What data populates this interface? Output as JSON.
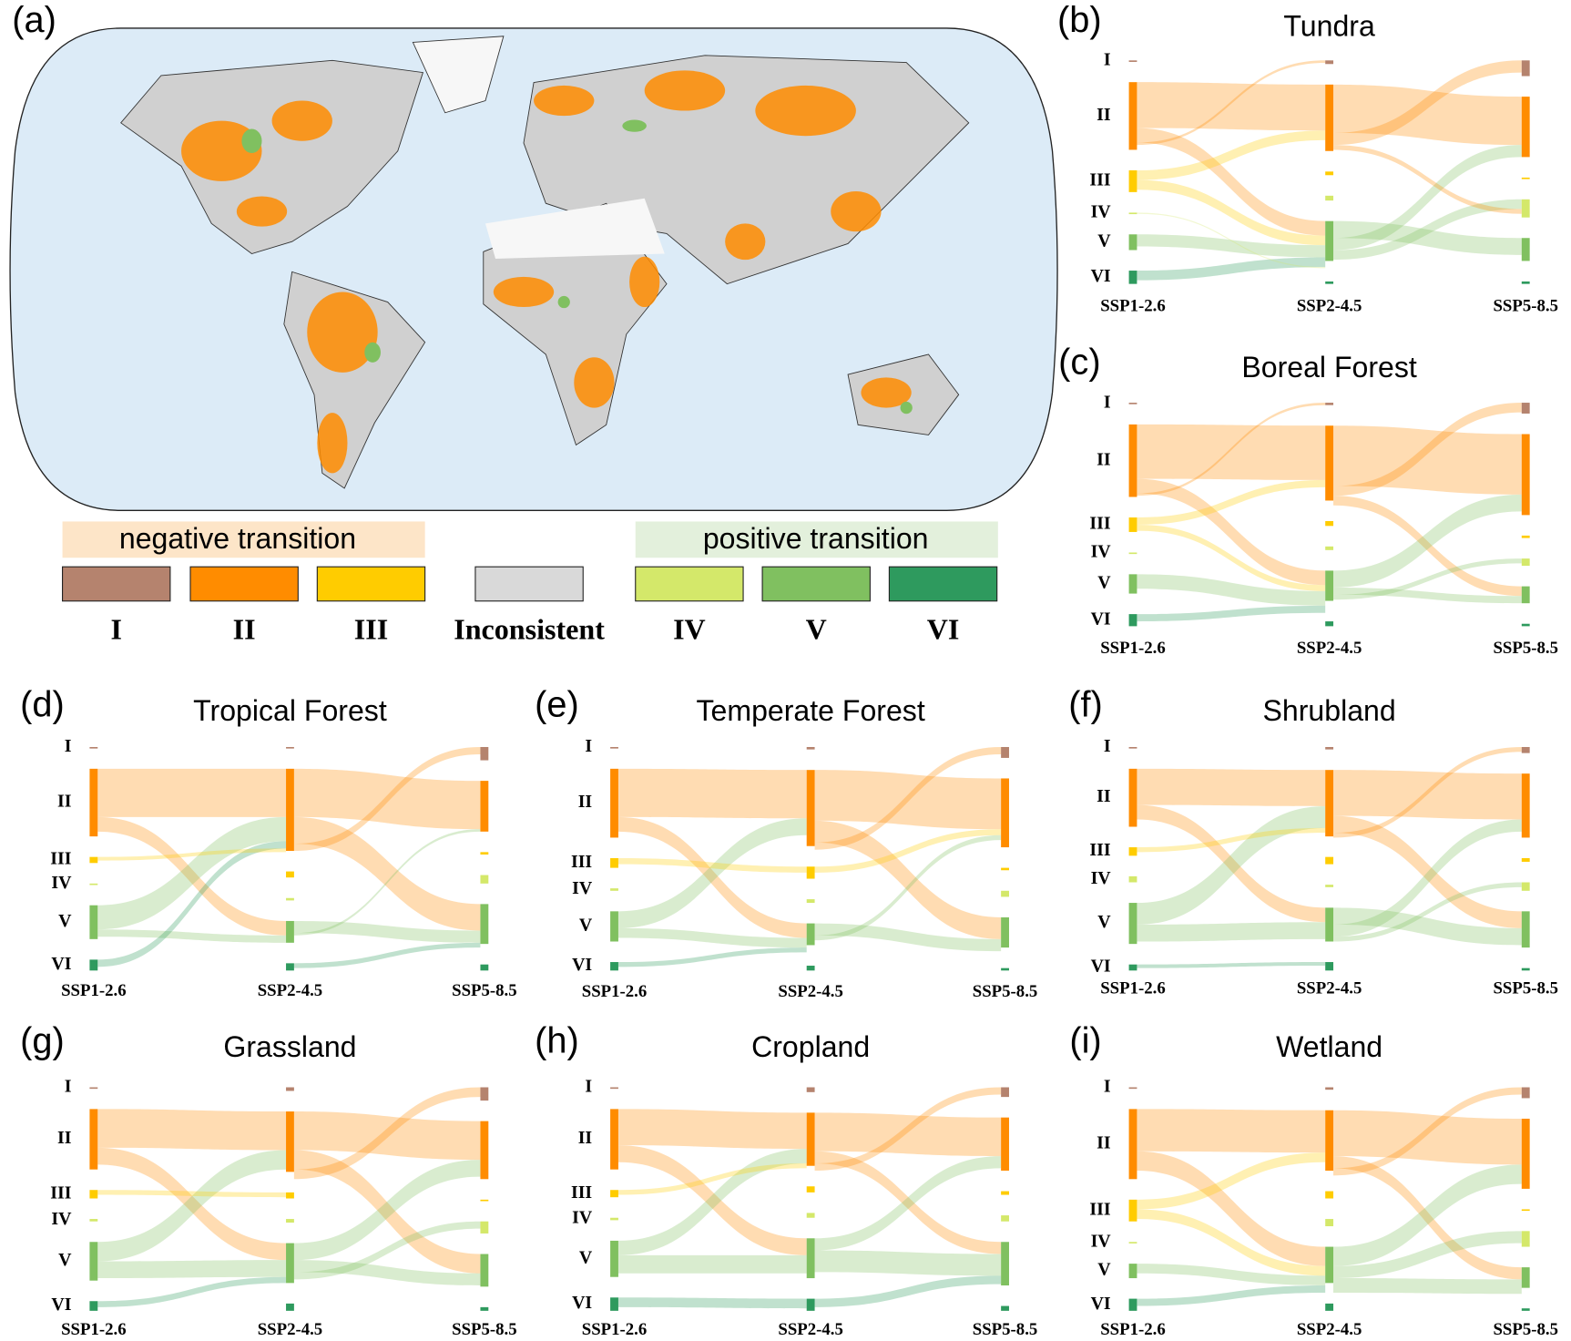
{
  "chart_data": [
    {
      "type": "map",
      "label": "(a)",
      "negative_label": "negative transition",
      "positive_label": "positive transition",
      "classes": [
        {
          "name": "I",
          "color": "#b5836e"
        },
        {
          "name": "II",
          "color": "#ff8c00"
        },
        {
          "name": "III",
          "color": "#ffcc00"
        },
        {
          "name": "Inconsistent",
          "color": "#d9d9d9"
        },
        {
          "name": "IV",
          "color": "#d4e86a"
        },
        {
          "name": "V",
          "color": "#80c060"
        },
        {
          "name": "VI",
          "color": "#2e9a5e"
        }
      ]
    },
    {
      "type": "sankey",
      "label": "(b)",
      "title": "Tundra",
      "levels": [
        "I",
        "II",
        "III",
        "IV",
        "V",
        "VI"
      ],
      "scenarios": [
        "SSP1-2.6",
        "SSP2-4.5",
        "SSP5-8.5"
      ],
      "nodes": [
        [
          1,
          56,
          18,
          1,
          13,
          11
        ],
        [
          3,
          55,
          3,
          4,
          33,
          2
        ],
        [
          13,
          50,
          1,
          15,
          19,
          2
        ]
      ],
      "links": [
        [
          [
            1,
            1,
            38
          ],
          [
            1,
            4,
            12
          ],
          [
            2,
            1,
            8
          ],
          [
            2,
            4,
            8
          ],
          [
            4,
            4,
            10
          ],
          [
            5,
            4,
            8
          ],
          [
            1,
            0,
            2
          ],
          [
            3,
            4,
            1
          ]
        ],
        [
          [
            1,
            1,
            40
          ],
          [
            1,
            0,
            10
          ],
          [
            4,
            4,
            14
          ],
          [
            4,
            1,
            10
          ],
          [
            4,
            3,
            8
          ],
          [
            1,
            3,
            4
          ]
        ]
      ]
    },
    {
      "type": "sankey",
      "label": "(c)",
      "title": "Boreal Forest",
      "levels": [
        "I",
        "II",
        "III",
        "IV",
        "V",
        "VI"
      ],
      "scenarios": [
        "SSP1-2.6",
        "SSP2-4.5",
        "SSP5-8.5"
      ],
      "nodes": [
        [
          1,
          60,
          12,
          1,
          16,
          10
        ],
        [
          2,
          62,
          4,
          3,
          25,
          4
        ],
        [
          9,
          67,
          2,
          6,
          14,
          2
        ]
      ],
      "links": [
        [
          [
            1,
            1,
            45
          ],
          [
            1,
            4,
            12
          ],
          [
            2,
            1,
            6
          ],
          [
            2,
            4,
            5
          ],
          [
            4,
            4,
            12
          ],
          [
            5,
            4,
            6
          ],
          [
            1,
            0,
            2
          ]
        ],
        [
          [
            1,
            1,
            50
          ],
          [
            1,
            0,
            8
          ],
          [
            1,
            4,
            8
          ],
          [
            4,
            1,
            14
          ],
          [
            4,
            4,
            6
          ],
          [
            4,
            3,
            4
          ]
        ]
      ]
    },
    {
      "type": "sankey",
      "label": "(d)",
      "title": "Tropical Forest",
      "levels": [
        "I",
        "II",
        "III",
        "IV",
        "V",
        "VI"
      ],
      "scenarios": [
        "SSP1-2.6",
        "SSP2-4.5",
        "SSP5-8.5"
      ],
      "nodes": [
        [
          1,
          56,
          5,
          1,
          28,
          9
        ],
        [
          1,
          68,
          5,
          2,
          18,
          6
        ],
        [
          11,
          42,
          2,
          7,
          33,
          5
        ]
      ],
      "links": [
        [
          [
            1,
            1,
            40
          ],
          [
            1,
            4,
            12
          ],
          [
            4,
            1,
            20
          ],
          [
            4,
            4,
            6
          ],
          [
            5,
            1,
            6
          ],
          [
            2,
            1,
            3
          ]
        ],
        [
          [
            1,
            1,
            40
          ],
          [
            1,
            4,
            22
          ],
          [
            1,
            0,
            6
          ],
          [
            4,
            4,
            10
          ],
          [
            4,
            1,
            2
          ],
          [
            5,
            4,
            4
          ]
        ]
      ]
    },
    {
      "type": "sankey",
      "label": "(e)",
      "title": "Temperate Forest",
      "levels": [
        "I",
        "II",
        "III",
        "IV",
        "V",
        "VI"
      ],
      "scenarios": [
        "SSP1-2.6",
        "SSP2-4.5",
        "SSP5-8.5"
      ],
      "nodes": [
        [
          1,
          57,
          8,
          2,
          25,
          7
        ],
        [
          2,
          63,
          10,
          3,
          18,
          4
        ],
        [
          9,
          57,
          2,
          5,
          25,
          2
        ]
      ],
      "links": [
        [
          [
            1,
            1,
            40
          ],
          [
            1,
            4,
            12
          ],
          [
            4,
            1,
            14
          ],
          [
            4,
            4,
            8
          ],
          [
            2,
            2,
            5
          ],
          [
            5,
            4,
            4
          ]
        ],
        [
          [
            1,
            1,
            42
          ],
          [
            1,
            4,
            18
          ],
          [
            1,
            0,
            6
          ],
          [
            4,
            4,
            10
          ],
          [
            2,
            1,
            5
          ],
          [
            4,
            1,
            4
          ]
        ]
      ]
    },
    {
      "type": "sankey",
      "label": "(f)",
      "title": "Shrubland",
      "levels": [
        "I",
        "II",
        "III",
        "IV",
        "V",
        "VI"
      ],
      "scenarios": [
        "SSP1-2.6",
        "SSP2-4.5",
        "SSP5-8.5"
      ],
      "nodes": [
        [
          1,
          48,
          7,
          5,
          34,
          5
        ],
        [
          2,
          55,
          6,
          2,
          28,
          7
        ],
        [
          5,
          53,
          3,
          7,
          30,
          2
        ]
      ],
      "links": [
        [
          [
            1,
            1,
            30
          ],
          [
            1,
            4,
            12
          ],
          [
            4,
            1,
            18
          ],
          [
            4,
            4,
            14
          ],
          [
            5,
            5,
            3
          ],
          [
            2,
            1,
            4
          ]
        ],
        [
          [
            1,
            1,
            38
          ],
          [
            1,
            4,
            14
          ],
          [
            4,
            4,
            14
          ],
          [
            4,
            1,
            10
          ],
          [
            1,
            0,
            4
          ],
          [
            4,
            3,
            4
          ]
        ]
      ]
    },
    {
      "type": "sankey",
      "label": "(g)",
      "title": "Grassland",
      "levels": [
        "I",
        "II",
        "III",
        "IV",
        "V",
        "VI"
      ],
      "scenarios": [
        "SSP1-2.6",
        "SSP2-4.5",
        "SSP5-8.5"
      ],
      "nodes": [
        [
          1,
          50,
          7,
          2,
          32,
          8
        ],
        [
          3,
          50,
          5,
          3,
          33,
          6
        ],
        [
          11,
          48,
          1,
          10,
          27,
          3
        ]
      ],
      "links": [
        [
          [
            1,
            1,
            32
          ],
          [
            1,
            4,
            14
          ],
          [
            4,
            1,
            16
          ],
          [
            4,
            4,
            14
          ],
          [
            5,
            4,
            5
          ],
          [
            2,
            2,
            4
          ]
        ],
        [
          [
            1,
            1,
            32
          ],
          [
            1,
            4,
            16
          ],
          [
            1,
            0,
            8
          ],
          [
            4,
            1,
            14
          ],
          [
            4,
            4,
            10
          ],
          [
            4,
            3,
            6
          ]
        ]
      ]
    },
    {
      "type": "sankey",
      "label": "(h)",
      "title": "Cropland",
      "levels": [
        "I",
        "II",
        "III",
        "IV",
        "V",
        "VI"
      ],
      "scenarios": [
        "SSP1-2.6",
        "SSP2-4.5",
        "SSP5-8.5"
      ],
      "nodes": [
        [
          1,
          50,
          6,
          2,
          30,
          11
        ],
        [
          4,
          44,
          5,
          4,
          33,
          10
        ],
        [
          8,
          44,
          3,
          5,
          36,
          4
        ]
      ],
      "links": [
        [
          [
            1,
            1,
            30
          ],
          [
            1,
            4,
            14
          ],
          [
            4,
            1,
            12
          ],
          [
            4,
            4,
            15
          ],
          [
            5,
            5,
            8
          ],
          [
            2,
            1,
            4
          ]
        ],
        [
          [
            1,
            1,
            32
          ],
          [
            1,
            4,
            10
          ],
          [
            4,
            1,
            10
          ],
          [
            4,
            4,
            18
          ],
          [
            5,
            4,
            7
          ],
          [
            1,
            0,
            6
          ]
        ]
      ]
    },
    {
      "type": "sankey",
      "label": "(i)",
      "title": "Wetland",
      "levels": [
        "I",
        "II",
        "III",
        "IV",
        "V",
        "VI"
      ],
      "scenarios": [
        "SSP1-2.6",
        "SSP2-4.5",
        "SSP5-8.5"
      ],
      "nodes": [
        [
          1,
          58,
          18,
          1,
          12,
          10
        ],
        [
          2,
          50,
          6,
          6,
          30,
          6
        ],
        [
          9,
          58,
          1,
          13,
          17,
          2
        ]
      ],
      "links": [
        [
          [
            1,
            1,
            35
          ],
          [
            1,
            4,
            16
          ],
          [
            2,
            1,
            8
          ],
          [
            2,
            4,
            8
          ],
          [
            4,
            4,
            8
          ],
          [
            5,
            4,
            6
          ]
        ],
        [
          [
            1,
            1,
            38
          ],
          [
            1,
            4,
            10
          ],
          [
            4,
            1,
            16
          ],
          [
            4,
            3,
            10
          ],
          [
            4,
            4,
            12
          ],
          [
            1,
            0,
            6
          ]
        ]
      ]
    }
  ]
}
